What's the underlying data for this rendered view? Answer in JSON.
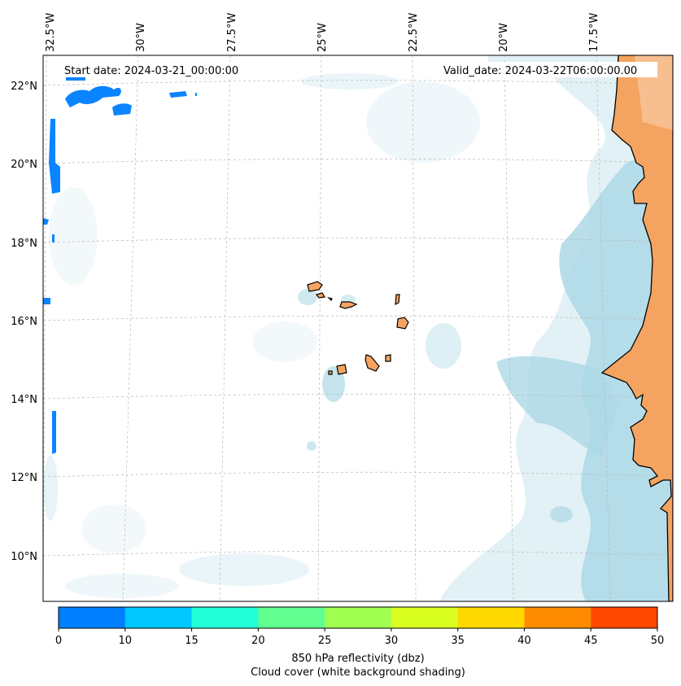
{
  "map": {
    "start_date": "Start date: 2024-03-21_00:00:00",
    "valid_date": "Valid_date: 2024-03-22T06:00:00.00",
    "lon_labels": [
      "32.5°W",
      "30°W",
      "27.5°W",
      "25°W",
      "22.5°W",
      "20°W",
      "17.5°W"
    ],
    "lat_labels": [
      "22°N",
      "20°N",
      "18°N",
      "16°N",
      "14°N",
      "12°N",
      "10°N"
    ],
    "colors": {
      "land": "#f4a460",
      "cloud": "#add8e6",
      "gridline": "#b0b0b0",
      "coastline": "#000000"
    }
  },
  "colorbar": {
    "ticks": [
      "0",
      "10",
      "15",
      "20",
      "25",
      "30",
      "35",
      "40",
      "45",
      "50"
    ],
    "colors": [
      "#0080ff",
      "#00c8ff",
      "#20ffd8",
      "#60ff90",
      "#a0ff50",
      "#d8ff20",
      "#ffd800",
      "#ff8c00",
      "#ff4800"
    ],
    "caption_line1": "850 hPa reflectivity (dbz)",
    "caption_line2": "Cloud cover (white background shading)"
  }
}
